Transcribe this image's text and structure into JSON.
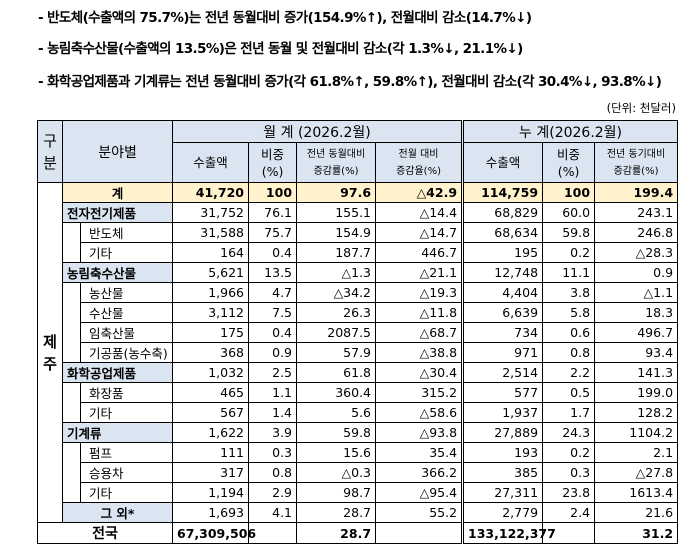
{
  "bullets": [
    "- 반도체(수출액의 75.7%)는 전년 동월대비 증가(154.9%↑), 전월대비 감소(14.7%↓)",
    "- 농림축수산물(수출액의 13.5%)은 전년 동월 및 전월대비 감소(각 1.3%↓, 21.1%↓)",
    "- 화학공업제품과 기계류는 전년 동월대비 증가(각 61.8%↑, 59.8%↑), 전월대비 감소(각 30.4%↓, 93.8%↓)"
  ],
  "unit": "(단위: 천달러)",
  "table": {
    "header": {
      "division": "구분",
      "field": "분야별",
      "monthly": "월 계 (2026.2월)",
      "cumulative": "누 계(2026.2월)",
      "columns": [
        "수출액",
        "비중\n(%)",
        "전년 동월대비\n증감률(%)",
        "전월 대비\n증감율(%)",
        "수출액",
        "비중\n(%)",
        "전년 동기대비\n증감률(%)"
      ]
    },
    "region": "제주",
    "total": {
      "label": "계",
      "values": [
        "41,720",
        "100",
        "97.6",
        "△42.9",
        "114,759",
        "100",
        "199.4"
      ]
    },
    "groups": [
      {
        "label": "전자전기제품",
        "values": [
          "31,752",
          "76.1",
          "155.1",
          "△14.4",
          "68,829",
          "60.0",
          "243.1"
        ],
        "items": [
          {
            "label": "반도체",
            "values": [
              "31,588",
              "75.7",
              "154.9",
              "△14.7",
              "68,634",
              "59.8",
              "246.8"
            ]
          },
          {
            "label": "기타",
            "values": [
              "164",
              "0.4",
              "187.7",
              "446.7",
              "195",
              "0.2",
              "△28.3"
            ]
          }
        ]
      },
      {
        "label": "농림축수산물",
        "values": [
          "5,621",
          "13.5",
          "△1.3",
          "△21.1",
          "12,748",
          "11.1",
          "0.9"
        ],
        "items": [
          {
            "label": "농산물",
            "values": [
              "1,966",
              "4.7",
              "△34.2",
              "△19.3",
              "4,404",
              "3.8",
              "△1.1"
            ]
          },
          {
            "label": "수산물",
            "values": [
              "3,112",
              "7.5",
              "26.3",
              "△11.8",
              "6,639",
              "5.8",
              "18.3"
            ]
          },
          {
            "label": "임축산물",
            "values": [
              "175",
              "0.4",
              "2087.5",
              "△68.7",
              "734",
              "0.6",
              "496.7"
            ]
          },
          {
            "label": "기공품(농수축)",
            "values": [
              "368",
              "0.9",
              "57.9",
              "△38.8",
              "971",
              "0.8",
              "93.4"
            ]
          }
        ]
      },
      {
        "label": "화학공업제품",
        "values": [
          "1,032",
          "2.5",
          "61.8",
          "△30.4",
          "2,514",
          "2.2",
          "141.3"
        ],
        "items": [
          {
            "label": "화장품",
            "values": [
              "465",
              "1.1",
              "360.4",
              "315.2",
              "577",
              "0.5",
              "199.0"
            ]
          },
          {
            "label": "기타",
            "values": [
              "567",
              "1.4",
              "5.6",
              "△58.6",
              "1,937",
              "1.7",
              "128.2"
            ]
          }
        ]
      },
      {
        "label": "기계류",
        "values": [
          "1,622",
          "3.9",
          "59.8",
          "△93.8",
          "27,889",
          "24.3",
          "1104.2"
        ],
        "items": [
          {
            "label": "펌프",
            "values": [
              "111",
              "0.3",
              "15.6",
              "35.4",
              "193",
              "0.2",
              "2.1"
            ]
          },
          {
            "label": "승용차",
            "values": [
              "317",
              "0.8",
              "△0.3",
              "366.2",
              "385",
              "0.3",
              "△27.8"
            ]
          },
          {
            "label": "기타",
            "values": [
              "1,194",
              "2.9",
              "98.7",
              "△95.4",
              "27,311",
              "23.8",
              "1613.4"
            ]
          }
        ]
      }
    ],
    "other": {
      "label": "그 외*",
      "values": [
        "1,693",
        "4.1",
        "28.7",
        "55.2",
        "2,779",
        "2.4",
        "21.6"
      ]
    },
    "national": {
      "label": "전국",
      "values": [
        "67,309,506",
        null,
        "28.7",
        null,
        "133,122,377",
        null,
        "31.2"
      ]
    }
  }
}
